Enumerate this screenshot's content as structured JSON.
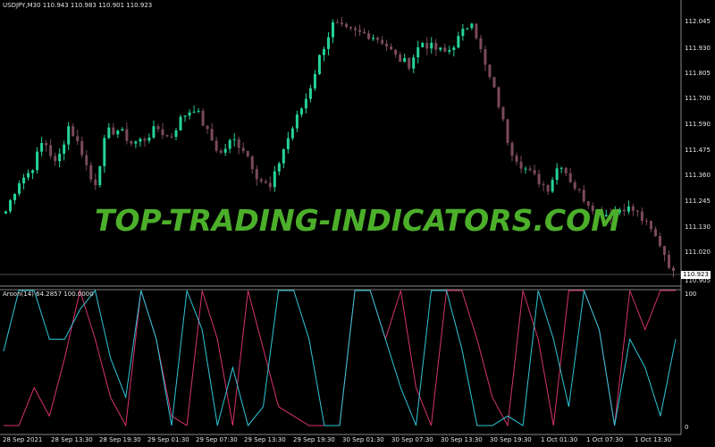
{
  "header": {
    "symbol_line": "USDJPY,M30  110.943 110.983 110.901 110.923"
  },
  "price_axis": {
    "ticks": [
      "112.045",
      "111.930",
      "111.805",
      "111.700",
      "111.590",
      "111.475",
      "111.360",
      "111.245",
      "111.130",
      "111.020",
      "110.905"
    ],
    "current_price": "110.923"
  },
  "aroon": {
    "title": "Aroon(14) 64.2857 100.0000",
    "axis_ticks": [
      "100",
      "0"
    ]
  },
  "time_axis": {
    "labels": [
      "28 Sep 2021",
      "28 Sep 13:30",
      "28 Sep 19:30",
      "29 Sep 01:30",
      "29 Sep 07:30",
      "29 Sep 13:30",
      "29 Sep 19:30",
      "30 Sep 01:30",
      "30 Sep 07:30",
      "30 Sep 13:30",
      "30 Sep 19:30",
      "1 Oct 01:30",
      "1 Oct 07:30",
      "1 Oct 13:30"
    ]
  },
  "watermark": "TOP-TRADING-INDICATORS.COM",
  "colors": {
    "bull": "#26d39a",
    "bear": "#7b4a5a",
    "aroon_up": "#2ec7d9",
    "aroon_down": "#d8336e",
    "axis": "#8a8a8a",
    "watermark": "#4caf2a"
  },
  "chart_data": {
    "type": "candlestick",
    "symbol": "USDJPY",
    "timeframe": "M30",
    "ylim": [
      110.9,
      112.08
    ],
    "close_path": [
      111.2,
      111.33,
      111.38,
      111.52,
      111.4,
      111.58,
      111.47,
      111.3,
      111.55,
      111.56,
      111.5,
      111.52,
      111.57,
      111.52,
      111.62,
      111.66,
      111.55,
      111.45,
      111.52,
      111.47,
      111.35,
      111.3,
      111.47,
      111.6,
      111.72,
      111.9,
      112.03,
      112.0,
      111.99,
      111.98,
      111.95,
      111.88,
      111.85,
      111.95,
      111.92,
      111.9,
      111.97,
      112.05,
      111.85,
      111.7,
      111.48,
      111.4,
      111.35,
      111.3,
      111.42,
      111.32,
      111.25,
      111.2,
      111.18,
      111.22,
      111.2,
      111.13,
      111.05,
      110.92
    ],
    "aroon_up": [
      55,
      100,
      100,
      64,
      64,
      86,
      100,
      50,
      21,
      100,
      64,
      0,
      100,
      71,
      0,
      43,
      0,
      14,
      100,
      100,
      64,
      0,
      0,
      100,
      100,
      64,
      28,
      0,
      100,
      100,
      57,
      0,
      0,
      7,
      0,
      100,
      64,
      14,
      100,
      71,
      0,
      64,
      43,
      7,
      64
    ],
    "aroon_down": [
      0,
      0,
      28,
      7,
      50,
      100,
      64,
      21,
      0,
      100,
      64,
      7,
      0,
      100,
      64,
      0,
      100,
      57,
      14,
      7,
      0,
      0,
      0,
      100,
      100,
      64,
      100,
      28,
      0,
      100,
      100,
      64,
      21,
      0,
      100,
      64,
      0,
      100,
      100,
      71,
      0,
      100,
      71,
      100,
      100
    ]
  }
}
